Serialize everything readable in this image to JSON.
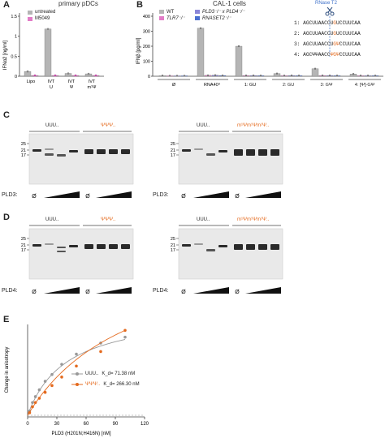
{
  "panels": {
    "A": {
      "letter": "A",
      "title": "primary pDCs",
      "ylabel": "IFNα2 [ng/ml]",
      "legend": [
        "untreated",
        "M5049"
      ],
      "yticks": [
        "0",
        "0.5",
        "1",
        "1.5"
      ],
      "xlabels": [
        {
          "line1": "Lipo",
          "line2": ""
        },
        {
          "line1": "IVT",
          "line2": "U"
        },
        {
          "line1": "IVT",
          "line2": "Ψ"
        },
        {
          "line1": "IVT",
          "line2": "m¹Ψ"
        }
      ]
    },
    "B": {
      "letter": "B",
      "title": "CAL-1 cells",
      "ylabel": "IFNβ [pg/ml]",
      "legend": [
        "WT",
        "TLR7⁻/⁻",
        "PLD3⁻/⁻ x PLD4⁻/⁻",
        "RNASET2⁻/⁻"
      ],
      "yticks": [
        "0",
        "100",
        "200",
        "300",
        "400"
      ],
      "groups": [
        "Ø",
        "RNA40⁹",
        "1: GU",
        "2: GU",
        "3: GΨ",
        "4: [Ψ]-GΨ"
      ],
      "rnase_label": "RNase T2",
      "sequences": [
        {
          "num": "1:",
          "prefix": "AGCUUAACCU",
          "mod": "G",
          "suffix": "UCCUUCAA"
        },
        {
          "num": "2:",
          "prefix": "AGCUUAACCU",
          "mod": "G",
          "suffix": "UCCUUCAA"
        },
        {
          "num": "3:",
          "prefix": "AGCUUAACCU",
          "mod": "GΨ",
          "suffix": "CCUUCAA"
        },
        {
          "num": "4:",
          "prefix": "AGCΨΨAACC",
          "mod": "ΨGΨ",
          "suffix": "CCUUCAA"
        }
      ]
    },
    "C": {
      "letter": "C",
      "left_labels": [
        "UUU..",
        "ΨΨΨ.."
      ],
      "right_labels": [
        "UUU..",
        "m¹Ψm¹Ψm¹Ψ.."
      ],
      "markers": [
        "25",
        "21",
        "17"
      ],
      "enzyme": "PLD3:",
      "empty": "Ø"
    },
    "D": {
      "letter": "D",
      "left_labels": [
        "UUU..",
        "ΨΨΨ.."
      ],
      "right_labels": [
        "UUU..",
        "m¹Ψm¹Ψm¹Ψ.."
      ],
      "markers": [
        "25",
        "21",
        "17"
      ],
      "enzyme": "PLD4:",
      "empty": "Ø"
    },
    "E": {
      "letter": "E",
      "ylabel": "Change in anisotropy",
      "xlabel": "PLD3 (H201N;H416N) [nM]",
      "xticks": [
        "0",
        "30",
        "60",
        "90",
        "120"
      ],
      "legend": [
        {
          "name": "UUU..",
          "kd": "K_d= 71.38 nM",
          "color": "#999999"
        },
        {
          "name": "ΨΨΨ..",
          "kd": "K_d= 266.30 nM",
          "color": "#e46a1e"
        }
      ]
    }
  },
  "chart_data": [
    {
      "type": "bar",
      "title": "primary pDCs",
      "ylabel": "IFNα2 [ng/ml]",
      "ylim": [
        0,
        1.5
      ],
      "categories": [
        "Lipo",
        "IVT U",
        "IVT Ψ",
        "IVT m¹Ψ"
      ],
      "series": [
        {
          "name": "untreated",
          "values": [
            0.12,
            1.18,
            0.07,
            0.06
          ]
        },
        {
          "name": "M5049",
          "values": [
            0.02,
            0.02,
            0.02,
            0.02
          ]
        }
      ]
    },
    {
      "type": "bar",
      "title": "CAL-1 cells",
      "ylabel": "IFNβ [pg/ml]",
      "ylim": [
        0,
        400
      ],
      "categories": [
        "Ø",
        "RNA40⁹",
        "1: GU",
        "2: GU",
        "3: GΨ",
        "4: [Ψ]-GΨ"
      ],
      "series": [
        {
          "name": "WT",
          "values": [
            4,
            320,
            200,
            18,
            50,
            15
          ]
        },
        {
          "name": "TLR7⁻/⁻",
          "values": [
            3,
            6,
            5,
            4,
            5,
            4
          ]
        },
        {
          "name": "PLD3⁻/⁻ x PLD4⁻/⁻",
          "values": [
            3,
            7,
            5,
            5,
            5,
            4
          ]
        },
        {
          "name": "RNASET2⁻/⁻",
          "values": [
            3,
            5,
            4,
            4,
            4,
            4
          ]
        }
      ]
    },
    {
      "type": "scatter",
      "ylabel": "Change in anisotropy",
      "xlabel": "PLD3 (H201N;H416N) [nM]",
      "xlim": [
        0,
        120
      ],
      "series": [
        {
          "name": "UUU..",
          "x": [
            2,
            5,
            8,
            12,
            18,
            25,
            35,
            50,
            75,
            100
          ],
          "y": [
            0.05,
            0.15,
            0.22,
            0.3,
            0.4,
            0.48,
            0.6,
            0.72,
            0.85,
            0.92
          ]
        },
        {
          "name": "ΨΨΨ..",
          "x": [
            2,
            5,
            8,
            12,
            18,
            25,
            35,
            50,
            75,
            100
          ],
          "y": [
            0.03,
            0.1,
            0.15,
            0.2,
            0.27,
            0.35,
            0.45,
            0.58,
            0.75,
            1.0
          ]
        }
      ]
    }
  ]
}
